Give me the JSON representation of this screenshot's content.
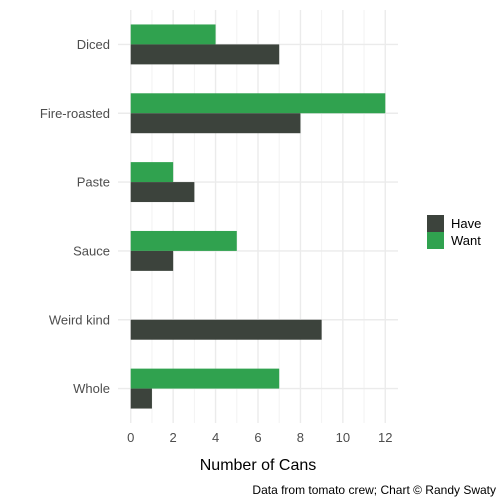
{
  "chart_data": {
    "type": "bar",
    "orientation": "horizontal",
    "categories": [
      "Diced",
      "Fire-roasted",
      "Paste",
      "Sauce",
      "Weird kind",
      "Whole"
    ],
    "series": [
      {
        "name": "Have",
        "color": "#3c433c",
        "values": [
          7,
          8,
          3,
          2,
          9,
          1
        ]
      },
      {
        "name": "Want",
        "color": "#30a24f",
        "values": [
          4,
          12,
          2,
          5,
          0,
          7
        ]
      }
    ],
    "xlabel": "Number of Cans",
    "ylabel": "",
    "xlim": [
      -0.6,
      12.6
    ],
    "xticks": [
      0,
      2,
      4,
      6,
      8,
      10,
      12
    ],
    "grid": true,
    "legend_position": "right",
    "caption": "Data from tomato crew; Chart © Randy Swaty"
  }
}
